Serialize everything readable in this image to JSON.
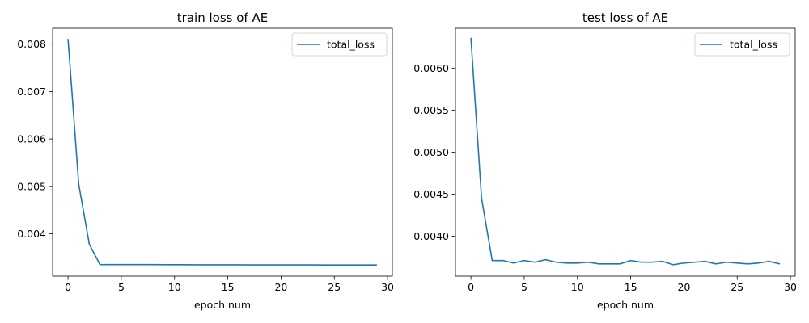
{
  "chart_data": [
    {
      "type": "line",
      "title": "train loss of AE",
      "xlabel": "epoch num",
      "ylabel": "",
      "xlim": [
        -1.45,
        30.45
      ],
      "ylim": [
        0.003107,
        0.008335
      ],
      "xticks": [
        0,
        5,
        10,
        15,
        20,
        25,
        30
      ],
      "xtick_labels": [
        "0",
        "5",
        "10",
        "15",
        "20",
        "25",
        "30"
      ],
      "yticks": [
        0.004,
        0.005,
        0.006,
        0.007,
        0.008
      ],
      "ytick_labels": [
        "0.004",
        "0.005",
        "0.006",
        "0.007",
        "0.008"
      ],
      "grid": false,
      "legend": "top-right",
      "series": [
        {
          "name": "total_loss",
          "color": "#1f77b4",
          "x": [
            0,
            1,
            2,
            3,
            4,
            5,
            6,
            7,
            8,
            9,
            10,
            11,
            12,
            13,
            14,
            15,
            16,
            17,
            18,
            19,
            20,
            21,
            22,
            23,
            24,
            25,
            26,
            27,
            28,
            29
          ],
          "y": [
            0.00811,
            0.00505,
            0.00378,
            0.00335,
            0.00335,
            0.00335,
            0.00335,
            0.00335,
            0.00335,
            0.003349,
            0.003348,
            0.003348,
            0.003347,
            0.003347,
            0.003347,
            0.003346,
            0.003346,
            0.003345,
            0.003345,
            0.003345,
            0.003344,
            0.003344,
            0.003344,
            0.003344,
            0.003343,
            0.003343,
            0.003343,
            0.003342,
            0.003342,
            0.003342
          ]
        }
      ]
    },
    {
      "type": "line",
      "title": "test loss of AE",
      "xlabel": "epoch num",
      "ylabel": "",
      "xlim": [
        -1.45,
        30.45
      ],
      "ylim": [
        0.003524,
        0.006474
      ],
      "xticks": [
        0,
        5,
        10,
        15,
        20,
        25,
        30
      ],
      "xtick_labels": [
        "0",
        "5",
        "10",
        "15",
        "20",
        "25",
        "30"
      ],
      "yticks": [
        0.004,
        0.0045,
        0.005,
        0.0055,
        0.006
      ],
      "ytick_labels": [
        "0.0040",
        "0.0045",
        "0.0050",
        "0.0055",
        "0.0060"
      ],
      "grid": false,
      "legend": "top-right",
      "series": [
        {
          "name": "total_loss",
          "color": "#1f77b4",
          "x": [
            0,
            1,
            2,
            3,
            4,
            5,
            6,
            7,
            8,
            9,
            10,
            11,
            12,
            13,
            14,
            15,
            16,
            17,
            18,
            19,
            20,
            21,
            22,
            23,
            24,
            25,
            26,
            27,
            28,
            29
          ],
          "y": [
            0.00636,
            0.00445,
            0.00371,
            0.00371,
            0.00368,
            0.00371,
            0.00369,
            0.00372,
            0.00369,
            0.00368,
            0.00368,
            0.00369,
            0.00367,
            0.00367,
            0.00367,
            0.00371,
            0.00369,
            0.00369,
            0.0037,
            0.00366,
            0.00368,
            0.00369,
            0.0037,
            0.00367,
            0.00369,
            0.00368,
            0.00367,
            0.00368,
            0.0037,
            0.00367
          ]
        }
      ]
    }
  ]
}
